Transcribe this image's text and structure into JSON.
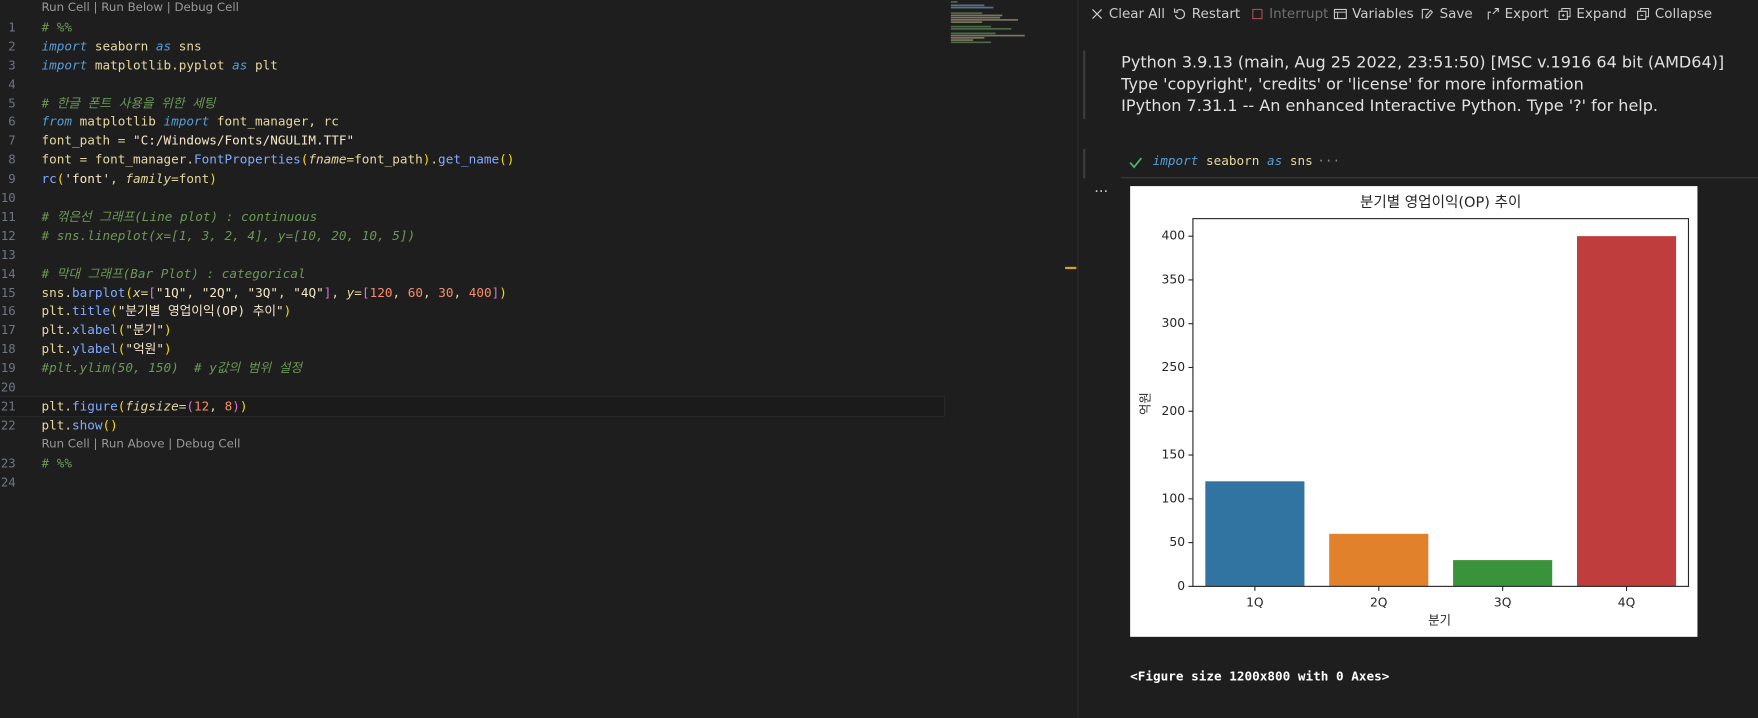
{
  "editor": {
    "cells": [
      {
        "codelens": "Run Cell | Run Below | Debug Cell",
        "lines": [
          {
            "number": 1,
            "tokens": [
              {
                "text": "# %%",
                "color": "#6a9955",
                "style": "italic"
              }
            ]
          },
          {
            "number": 2,
            "tokens": [
              {
                "text": "import",
                "color": "#569cd6",
                "style": "italic"
              },
              {
                "text": " seaborn ",
                "color": "#e5d7a0"
              },
              {
                "text": "as",
                "color": "#569cd6",
                "style": "italic"
              },
              {
                "text": " sns",
                "color": "#e5d7a0"
              }
            ]
          },
          {
            "number": 3,
            "tokens": [
              {
                "text": "import",
                "color": "#569cd6",
                "style": "italic"
              },
              {
                "text": " matplotlib.pyplot ",
                "color": "#e5d7a0"
              },
              {
                "text": "as",
                "color": "#569cd6",
                "style": "italic"
              },
              {
                "text": " plt",
                "color": "#e5d7a0"
              }
            ]
          },
          {
            "number": 4,
            "tokens": []
          },
          {
            "number": 5,
            "tokens": [
              {
                "text": "# 한글 폰트 사용을 위한 세팅",
                "color": "#6a9955",
                "style": "italic"
              }
            ]
          },
          {
            "number": 6,
            "tokens": [
              {
                "text": "from",
                "color": "#569cd6",
                "style": "italic"
              },
              {
                "text": " matplotlib ",
                "color": "#e5d7a0"
              },
              {
                "text": "import",
                "color": "#569cd6",
                "style": "italic"
              },
              {
                "text": " font_manager, rc",
                "color": "#e5d7a0"
              }
            ]
          },
          {
            "number": 7,
            "tokens": [
              {
                "text": "font_path = ",
                "color": "#e5d7a0"
              },
              {
                "text": "\"C:/Windows/Fonts/NGULIM.TTF\"",
                "color": "#f5e6c8"
              }
            ]
          },
          {
            "number": 8,
            "tokens": [
              {
                "text": "font = font_manager.",
                "color": "#e5d7a0"
              },
              {
                "text": "FontProperties",
                "color": "#82aaff"
              },
              {
                "text": "(",
                "color": "#ffd700"
              },
              {
                "text": "fname",
                "color": "#e5d7a0",
                "style": "italic"
              },
              {
                "text": "=font_path",
                "color": "#e5d7a0"
              },
              {
                "text": ")",
                "color": "#ffd700"
              },
              {
                "text": ".",
                "color": "#e5d7a0"
              },
              {
                "text": "get_name",
                "color": "#82aaff"
              },
              {
                "text": "()",
                "color": "#ffd700"
              }
            ]
          },
          {
            "number": 9,
            "tokens": [
              {
                "text": "rc",
                "color": "#82aaff"
              },
              {
                "text": "(",
                "color": "#ffd700"
              },
              {
                "text": "'font'",
                "color": "#f5e6c8"
              },
              {
                "text": ", ",
                "color": "#e5d7a0"
              },
              {
                "text": "family",
                "color": "#e5d7a0",
                "style": "italic"
              },
              {
                "text": "=font",
                "color": "#e5d7a0"
              },
              {
                "text": ")",
                "color": "#ffd700"
              }
            ]
          },
          {
            "number": 10,
            "tokens": []
          },
          {
            "number": 11,
            "tokens": [
              {
                "text": "# 꺾은선 그래프(Line plot) : continuous",
                "color": "#6a9955",
                "style": "italic"
              }
            ]
          },
          {
            "number": 12,
            "tokens": [
              {
                "text": "# sns.lineplot(x=[1, 3, 2, 4], y=[10, 20, 10, 5])",
                "color": "#6a9955",
                "style": "italic"
              }
            ]
          },
          {
            "number": 13,
            "tokens": []
          },
          {
            "number": 14,
            "tokens": [
              {
                "text": "# 막대 그래프(Bar Plot) : categorical",
                "color": "#6a9955",
                "style": "italic"
              }
            ]
          },
          {
            "number": 15,
            "tokens": [
              {
                "text": "sns.",
                "color": "#e5d7a0"
              },
              {
                "text": "barplot",
                "color": "#82aaff"
              },
              {
                "text": "(",
                "color": "#ffd700"
              },
              {
                "text": "x",
                "color": "#e5d7a0",
                "style": "italic"
              },
              {
                "text": "=",
                "color": "#e5d7a0"
              },
              {
                "text": "[",
                "color": "#da70d6"
              },
              {
                "text": "\"1Q\"",
                "color": "#f5e6c8"
              },
              {
                "text": ", ",
                "color": "#e5d7a0"
              },
              {
                "text": "\"2Q\"",
                "color": "#f5e6c8"
              },
              {
                "text": ", ",
                "color": "#e5d7a0"
              },
              {
                "text": "\"3Q\"",
                "color": "#f5e6c8"
              },
              {
                "text": ", ",
                "color": "#e5d7a0"
              },
              {
                "text": "\"4Q\"",
                "color": "#f5e6c8"
              },
              {
                "text": "]",
                "color": "#da70d6"
              },
              {
                "text": ", ",
                "color": "#e5d7a0"
              },
              {
                "text": "y",
                "color": "#e5d7a0",
                "style": "italic"
              },
              {
                "text": "=",
                "color": "#e5d7a0"
              },
              {
                "text": "[",
                "color": "#da70d6"
              },
              {
                "text": "120",
                "color": "#f78c6c"
              },
              {
                "text": ", ",
                "color": "#e5d7a0"
              },
              {
                "text": "60",
                "color": "#f78c6c"
              },
              {
                "text": ", ",
                "color": "#e5d7a0"
              },
              {
                "text": "30",
                "color": "#f78c6c"
              },
              {
                "text": ", ",
                "color": "#e5d7a0"
              },
              {
                "text": "400",
                "color": "#f78c6c"
              },
              {
                "text": "]",
                "color": "#da70d6"
              },
              {
                "text": ")",
                "color": "#ffd700"
              }
            ]
          },
          {
            "number": 16,
            "tokens": [
              {
                "text": "plt.",
                "color": "#e5d7a0"
              },
              {
                "text": "title",
                "color": "#82aaff"
              },
              {
                "text": "(",
                "color": "#ffd700"
              },
              {
                "text": "\"분기별 영업이익(OP) 추이\"",
                "color": "#f5e6c8"
              },
              {
                "text": ")",
                "color": "#ffd700"
              }
            ]
          },
          {
            "number": 17,
            "tokens": [
              {
                "text": "plt.",
                "color": "#e5d7a0"
              },
              {
                "text": "xlabel",
                "color": "#82aaff"
              },
              {
                "text": "(",
                "color": "#ffd700"
              },
              {
                "text": "\"분기\"",
                "color": "#f5e6c8"
              },
              {
                "text": ")",
                "color": "#ffd700"
              }
            ]
          },
          {
            "number": 18,
            "tokens": [
              {
                "text": "plt.",
                "color": "#e5d7a0"
              },
              {
                "text": "ylabel",
                "color": "#82aaff"
              },
              {
                "text": "(",
                "color": "#ffd700"
              },
              {
                "text": "\"억원\"",
                "color": "#f5e6c8"
              },
              {
                "text": ")",
                "color": "#ffd700"
              }
            ]
          },
          {
            "number": 19,
            "tokens": [
              {
                "text": "#plt.ylim(50, 150)  # y값의 범위 설정",
                "color": "#6a9955",
                "style": "italic"
              }
            ]
          },
          {
            "number": 20,
            "tokens": []
          },
          {
            "number": 21,
            "current": true,
            "tokens": [
              {
                "text": "plt.",
                "color": "#e5d7a0"
              },
              {
                "text": "figure",
                "color": "#82aaff"
              },
              {
                "text": "(",
                "color": "#ffd700"
              },
              {
                "text": "figsize",
                "color": "#e5d7a0",
                "style": "italic"
              },
              {
                "text": "=",
                "color": "#e5d7a0"
              },
              {
                "text": "(",
                "color": "#da70d6"
              },
              {
                "text": "12",
                "color": "#f78c6c"
              },
              {
                "text": ", ",
                "color": "#e5d7a0"
              },
              {
                "text": "8",
                "color": "#f78c6c"
              },
              {
                "text": ")",
                "color": "#da70d6"
              },
              {
                "text": ")",
                "color": "#ffd700"
              }
            ]
          },
          {
            "number": 22,
            "tokens": [
              {
                "text": "plt.",
                "color": "#e5d7a0"
              },
              {
                "text": "show",
                "color": "#82aaff"
              },
              {
                "text": "()",
                "color": "#ffd700"
              }
            ]
          }
        ]
      },
      {
        "codelens": "Run Cell | Run Above | Debug Cell",
        "lines": [
          {
            "number": 23,
            "tokens": [
              {
                "text": "# %%",
                "color": "#6a9955",
                "style": "italic"
              }
            ]
          },
          {
            "number": 24,
            "tokens": []
          }
        ]
      }
    ]
  },
  "toolbar": [
    {
      "label": "Clear All"
    },
    {
      "label": "Restart"
    },
    {
      "label": "Interrupt",
      "disabled": true
    },
    {
      "label": "Variables"
    },
    {
      "label": "Save"
    },
    {
      "label": "Export"
    },
    {
      "label": "Expand"
    },
    {
      "label": "Collapse"
    }
  ],
  "banner": [
    "Python 3.9.13 (main, Aug 25 2022, 23:51:50) [MSC v.1916 64 bit (AMD64)]",
    "Type 'copyright', 'credits' or 'license' for more information",
    "IPython 7.31.1 -- An enhanced Interactive Python. Type '?' for help."
  ],
  "cell": {
    "tokens": [
      {
        "text": "import",
        "color": "#569cd6",
        "style": "italic"
      },
      {
        "text": " seaborn ",
        "color": "#e5d7a0"
      },
      {
        "text": "as",
        "color": "#569cd6",
        "style": "italic"
      },
      {
        "text": " sns",
        "color": "#e5d7a0"
      }
    ],
    "more": "···"
  },
  "output_more": "···",
  "chart_data": {
    "type": "bar",
    "title": "분기별 영업이익(OP) 추이",
    "xlabel": "분기",
    "ylabel": "억원",
    "categories": [
      "1Q",
      "2Q",
      "3Q",
      "4Q"
    ],
    "values": [
      120,
      60,
      30,
      400
    ],
    "colors": [
      "#3274a1",
      "#e1812c",
      "#3a923a",
      "#c03d3e"
    ],
    "ylim": [
      0,
      420
    ],
    "yticks": [
      0,
      50,
      100,
      150,
      200,
      250,
      300,
      350,
      400
    ]
  },
  "figure_text": "<Figure size 1200x800 with 0 Axes>"
}
